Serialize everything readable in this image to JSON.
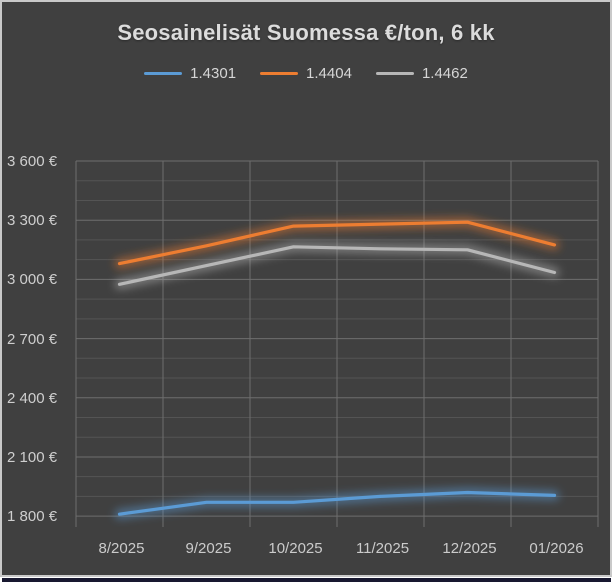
{
  "window": {
    "background_color": "#404040",
    "frame_border_color": "#c9c9c9",
    "bottom_edge_color": "#181830"
  },
  "chart_data": {
    "type": "line",
    "title": "Seosainelisät Suomessa €/ton, 6 kk",
    "categories": [
      "8/2025",
      "9/2025",
      "10/2025",
      "11/2025",
      "12/2025",
      "01/2026"
    ],
    "series": [
      {
        "name": "1.4301",
        "color": "#5B9BD5",
        "values": [
          1810,
          1870,
          1870,
          1900,
          1920,
          1905
        ]
      },
      {
        "name": "1.4404",
        "color": "#ED7D31",
        "values": [
          3080,
          3170,
          3270,
          3280,
          3290,
          3175
        ]
      },
      {
        "name": "1.4462",
        "color": "#B7B7B7",
        "values": [
          2975,
          3070,
          3165,
          3155,
          3150,
          3035
        ]
      }
    ],
    "ylim": [
      1745,
      3600
    ],
    "y_minor_step": 100,
    "y_major_step": 300,
    "y_ticks": [
      {
        "value": 3600,
        "label": "3 600 €"
      },
      {
        "value": 3300,
        "label": "3 300 €"
      },
      {
        "value": 3000,
        "label": "3 000 €"
      },
      {
        "value": 2700,
        "label": "2 700 €"
      },
      {
        "value": 2400,
        "label": "2 400 €"
      },
      {
        "value": 2100,
        "label": "2 100 €"
      },
      {
        "value": 1800,
        "label": "1 800 €"
      }
    ],
    "legend_position": "top",
    "grid": true,
    "gridline_major_color": "#6e6e6e",
    "gridline_minor_color": "#545454",
    "line_effect": "glow",
    "text_color": "#cfcfcf",
    "title_color": "#dcdcdc"
  }
}
